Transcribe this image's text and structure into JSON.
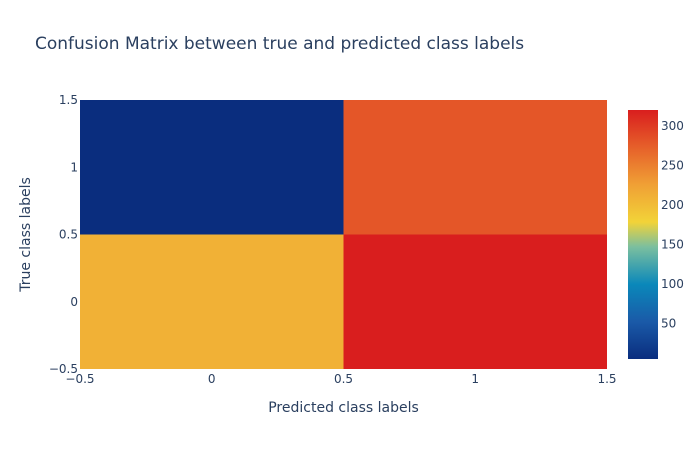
{
  "chart_data": {
    "type": "heatmap",
    "title": "Confusion Matrix between true and predicted class labels",
    "xlabel": "Predicted class labels",
    "ylabel": "True class labels",
    "x": [
      0,
      1
    ],
    "y": [
      0,
      1
    ],
    "z": [
      [
        210,
        320
      ],
      [
        5,
        280
      ]
    ],
    "xlim": [
      -0.5,
      1.5
    ],
    "ylim": [
      -0.5,
      1.5
    ],
    "x_ticks": [
      "−0.5",
      "0",
      "0.5",
      "1",
      "1.5"
    ],
    "y_ticks": [
      "−0.5",
      "0",
      "0.5",
      "1",
      "1.5"
    ],
    "colorscale": [
      [
        0.0,
        "#0a2d7e"
      ],
      [
        0.15,
        "#1a5aa8"
      ],
      [
        0.3,
        "#0a88ba"
      ],
      [
        0.45,
        "#7bbf9f"
      ],
      [
        0.55,
        "#f2d338"
      ],
      [
        0.7,
        "#f0a035"
      ],
      [
        0.85,
        "#e6602a"
      ],
      [
        1.0,
        "#d91e1e"
      ]
    ],
    "colorbar": {
      "range": [
        5,
        320
      ],
      "ticks": [
        "50",
        "100",
        "150",
        "200",
        "250",
        "300"
      ],
      "tick_values": [
        50,
        100,
        150,
        200,
        250,
        300
      ]
    },
    "grid": false
  }
}
